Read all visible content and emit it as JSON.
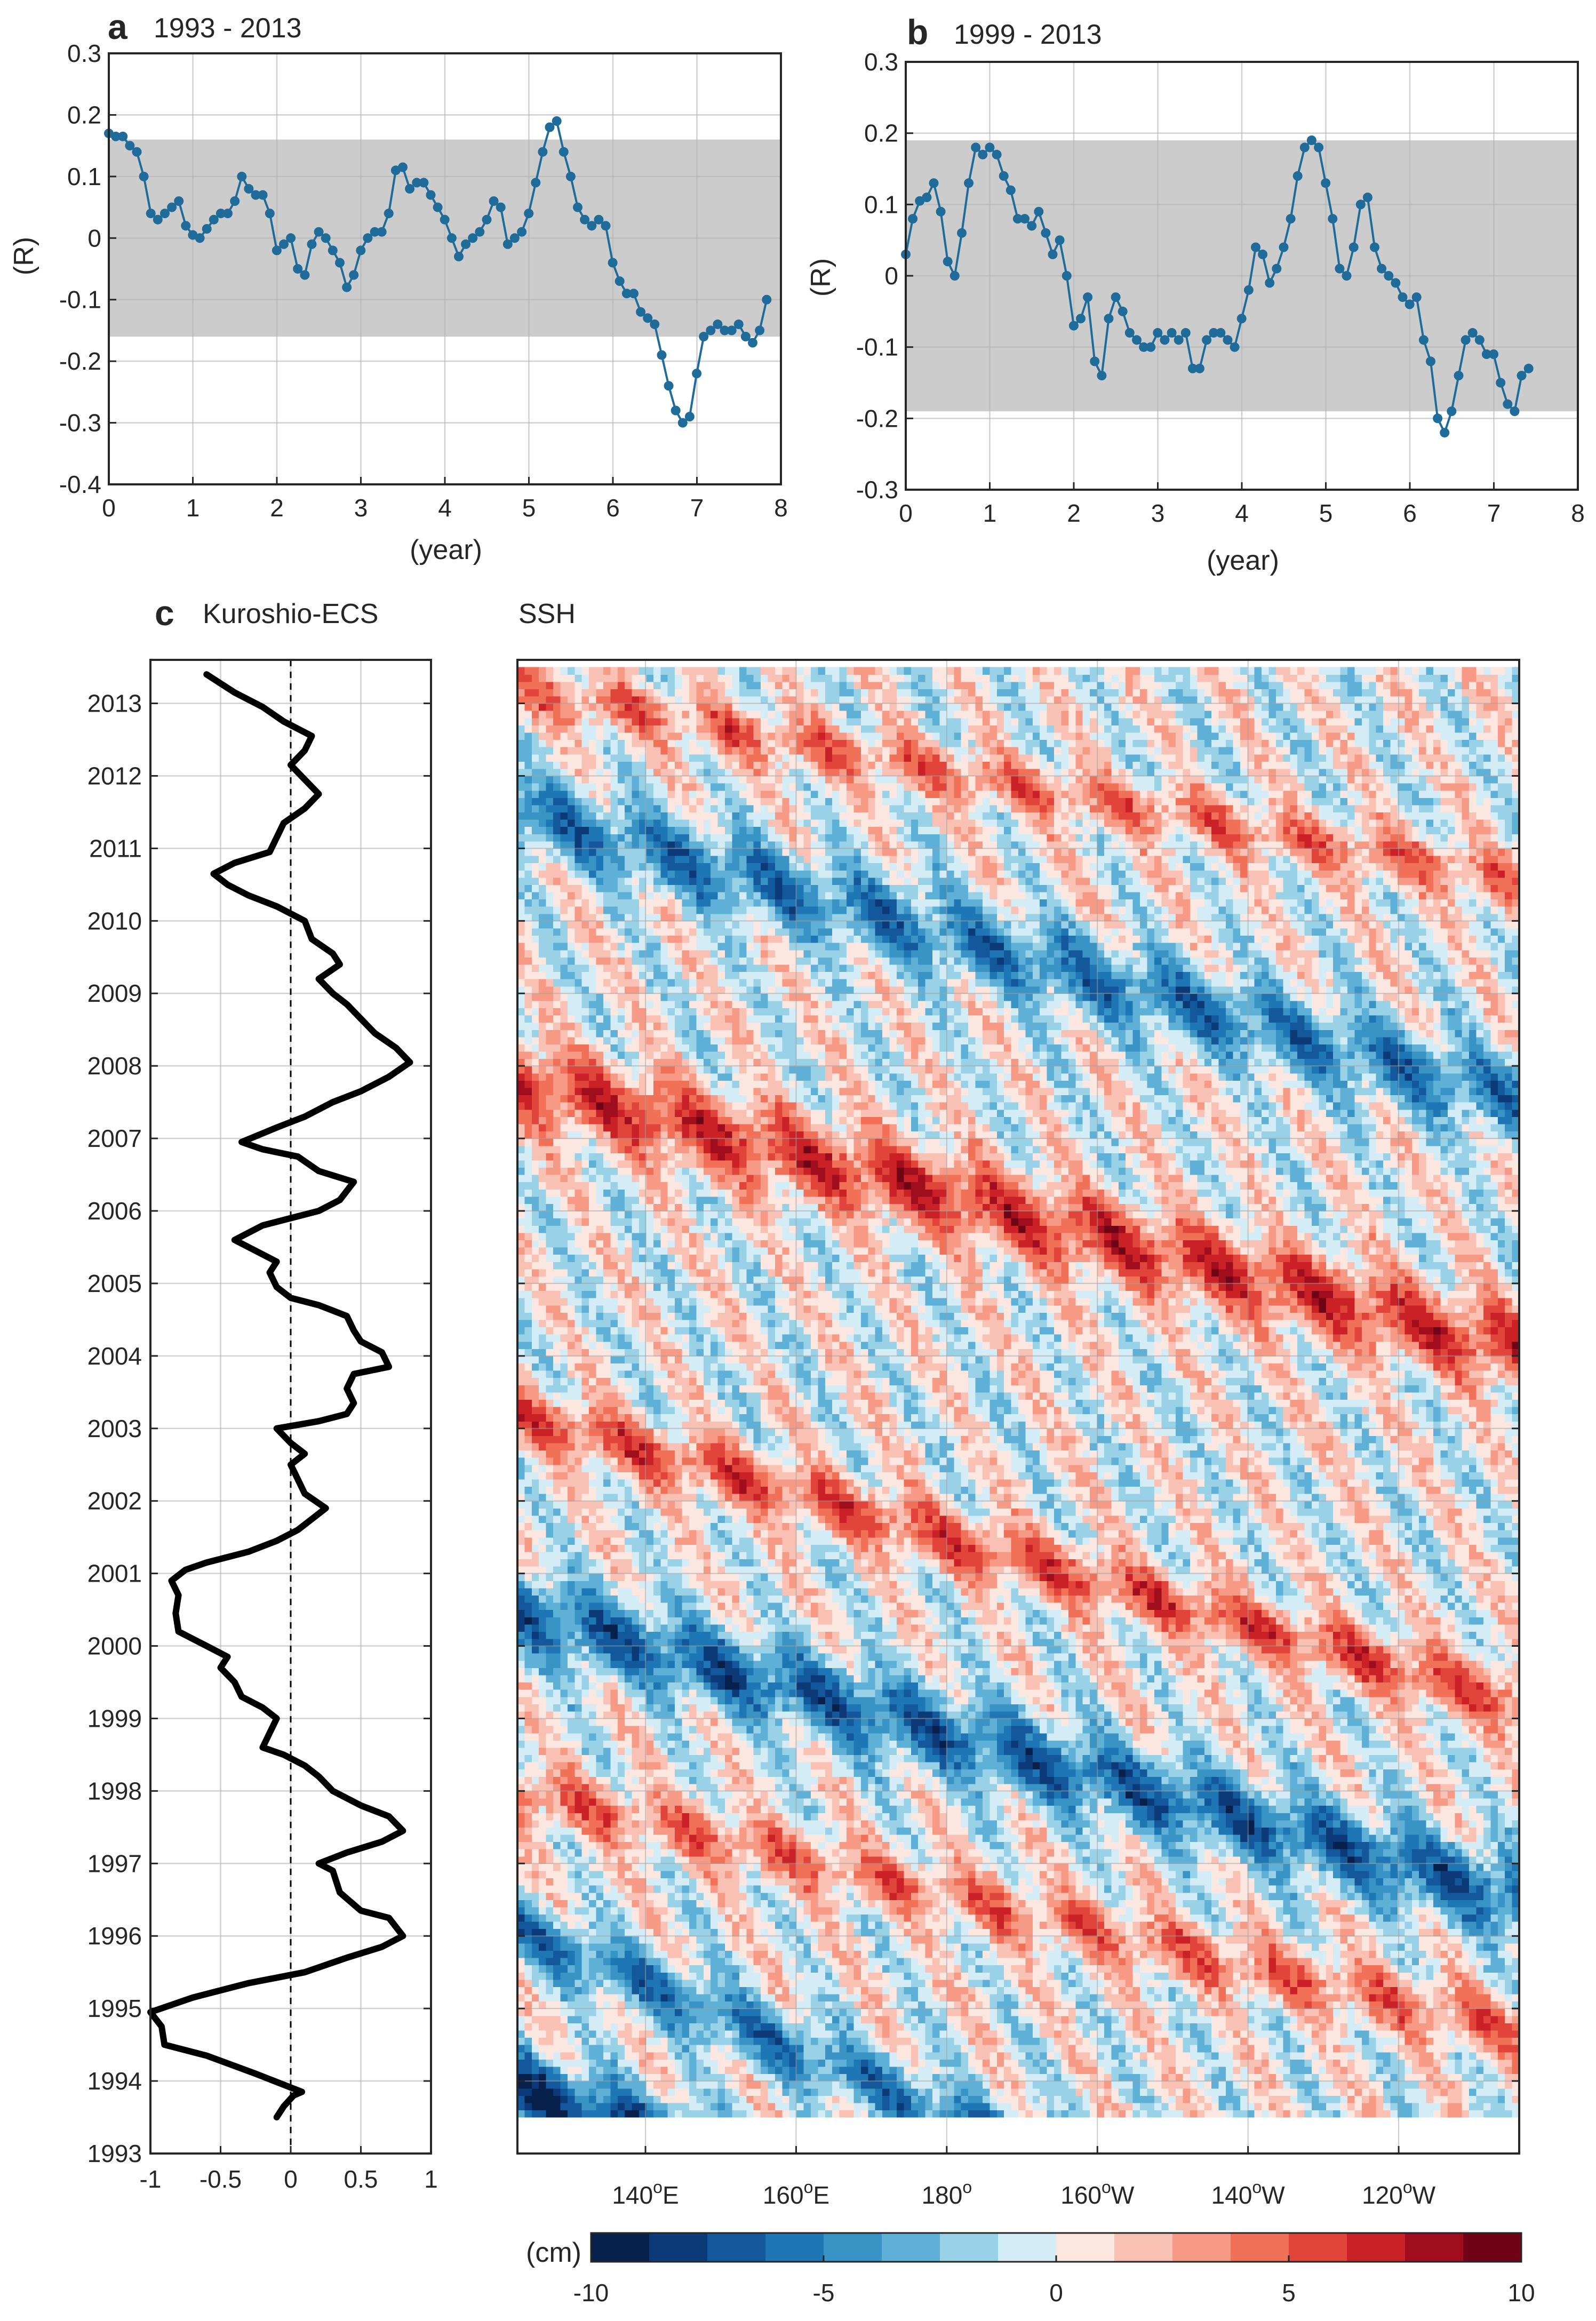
{
  "chart_data": [
    {
      "id": "a",
      "type": "line",
      "panel_letter": "a",
      "title": "1993 - 2013",
      "xlabel": "(year)",
      "ylabel": "(R)",
      "xlim": [
        0,
        8
      ],
      "ylim": [
        -0.4,
        0.3
      ],
      "xticks": [
        0,
        1,
        2,
        3,
        4,
        5,
        6,
        7,
        8
      ],
      "yticks": [
        -0.4,
        -0.3,
        -0.2,
        -0.1,
        0,
        0.1,
        0.2,
        0.3
      ],
      "xtick_labels": [
        "0",
        "1",
        "2",
        "3",
        "4",
        "5",
        "6",
        "7",
        "8"
      ],
      "ytick_labels": [
        "-0.4",
        "-0.3",
        "-0.2",
        "-0.1",
        "0",
        "0.1",
        "0.2",
        "0.3"
      ],
      "grid": true,
      "band": [
        -0.16,
        0.16
      ],
      "line_color": "#1f6b9a",
      "band_color": "#cccccc",
      "x_step": 0.0833,
      "values": [
        0.17,
        0.165,
        0.165,
        0.15,
        0.14,
        0.1,
        0.04,
        0.03,
        0.04,
        0.05,
        0.06,
        0.02,
        0.005,
        0.0,
        0.015,
        0.03,
        0.04,
        0.04,
        0.06,
        0.1,
        0.08,
        0.07,
        0.07,
        0.04,
        -0.02,
        -0.01,
        0.0,
        -0.05,
        -0.06,
        -0.01,
        0.01,
        0.0,
        -0.02,
        -0.04,
        -0.08,
        -0.06,
        -0.02,
        0.0,
        0.01,
        0.01,
        0.04,
        0.11,
        0.115,
        0.08,
        0.09,
        0.09,
        0.07,
        0.05,
        0.03,
        0.0,
        -0.03,
        -0.01,
        0.0,
        0.01,
        0.03,
        0.06,
        0.05,
        -0.01,
        0.0,
        0.01,
        0.04,
        0.09,
        0.14,
        0.18,
        0.19,
        0.14,
        0.1,
        0.05,
        0.03,
        0.02,
        0.03,
        0.02,
        -0.04,
        -0.07,
        -0.09,
        -0.09,
        -0.12,
        -0.13,
        -0.14,
        -0.19,
        -0.24,
        -0.28,
        -0.3,
        -0.29,
        -0.22,
        -0.16,
        -0.15,
        -0.14,
        -0.15,
        -0.15,
        -0.14,
        -0.16,
        -0.17,
        -0.15,
        -0.1
      ]
    },
    {
      "id": "b",
      "type": "line",
      "panel_letter": "b",
      "title": "1999 - 2013",
      "xlabel": "(year)",
      "ylabel": "(R)",
      "xlim": [
        0,
        8
      ],
      "ylim": [
        -0.3,
        0.3
      ],
      "xticks": [
        0,
        1,
        2,
        3,
        4,
        5,
        6,
        7,
        8
      ],
      "yticks": [
        -0.3,
        -0.2,
        -0.1,
        0,
        0.1,
        0.2,
        0.3
      ],
      "xtick_labels": [
        "0",
        "1",
        "2",
        "3",
        "4",
        "5",
        "6",
        "7",
        "8"
      ],
      "ytick_labels": [
        "-0.3",
        "-0.2",
        "-0.1",
        "0",
        "0.1",
        "0.2",
        "0.3"
      ],
      "grid": true,
      "band": [
        -0.19,
        0.19
      ],
      "line_color": "#1f6b9a",
      "band_color": "#cccccc",
      "x_step": 0.0833,
      "values": [
        0.03,
        0.08,
        0.105,
        0.11,
        0.13,
        0.09,
        0.02,
        0.0,
        0.06,
        0.13,
        0.18,
        0.17,
        0.18,
        0.17,
        0.14,
        0.12,
        0.08,
        0.08,
        0.07,
        0.09,
        0.06,
        0.03,
        0.05,
        0.0,
        -0.07,
        -0.06,
        -0.03,
        -0.12,
        -0.14,
        -0.06,
        -0.03,
        -0.05,
        -0.08,
        -0.09,
        -0.1,
        -0.1,
        -0.08,
        -0.09,
        -0.08,
        -0.09,
        -0.08,
        -0.13,
        -0.13,
        -0.09,
        -0.08,
        -0.08,
        -0.09,
        -0.1,
        -0.06,
        -0.02,
        0.04,
        0.03,
        -0.01,
        0.01,
        0.04,
        0.08,
        0.14,
        0.18,
        0.19,
        0.18,
        0.13,
        0.08,
        0.01,
        0.0,
        0.04,
        0.1,
        0.11,
        0.04,
        0.01,
        0.0,
        -0.01,
        -0.03,
        -0.04,
        -0.03,
        -0.09,
        -0.12,
        -0.2,
        -0.22,
        -0.19,
        -0.14,
        -0.09,
        -0.08,
        -0.09,
        -0.11,
        -0.11,
        -0.15,
        -0.18,
        -0.19,
        -0.14,
        -0.13
      ]
    },
    {
      "id": "c",
      "type": "line",
      "panel_letter": "c",
      "title": "Kuroshio-ECS",
      "orientation": "vertical",
      "xlim": [
        -1,
        1
      ],
      "ylim": [
        1993,
        2013.6
      ],
      "xticks": [
        -1,
        -0.5,
        0,
        0.5,
        1
      ],
      "xtick_labels": [
        "-1",
        "-0.5",
        "0",
        "0.5",
        "1"
      ],
      "yticks": [
        1993,
        1994,
        1995,
        1996,
        1997,
        1998,
        1999,
        2000,
        2001,
        2002,
        2003,
        2004,
        2005,
        2006,
        2007,
        2008,
        2009,
        2010,
        2011,
        2012,
        2013
      ],
      "ytick_labels": [
        "1993",
        "1994",
        "1995",
        "1996",
        "1997",
        "1998",
        "1999",
        "2000",
        "2001",
        "2002",
        "2003",
        "2004",
        "2005",
        "2006",
        "2007",
        "2008",
        "2009",
        "2010",
        "2011",
        "2012",
        "2013"
      ],
      "grid": true,
      "zero_line": "dashed",
      "line_color": "#000000",
      "points": [
        [
          -0.1,
          1993.5
        ],
        [
          -0.05,
          1993.65
        ],
        [
          0.02,
          1993.8
        ],
        [
          0.08,
          1993.85
        ],
        [
          -0.25,
          1994.1
        ],
        [
          -0.6,
          1994.35
        ],
        [
          -0.9,
          1994.5
        ],
        [
          -0.92,
          1994.75
        ],
        [
          -1.0,
          1994.95
        ],
        [
          -0.7,
          1995.15
        ],
        [
          -0.3,
          1995.35
        ],
        [
          0.1,
          1995.5
        ],
        [
          0.4,
          1995.7
        ],
        [
          0.65,
          1995.85
        ],
        [
          0.8,
          1996.0
        ],
        [
          0.7,
          1996.25
        ],
        [
          0.5,
          1996.35
        ],
        [
          0.35,
          1996.6
        ],
        [
          0.3,
          1996.9
        ],
        [
          0.2,
          1997.0
        ],
        [
          0.4,
          1997.15
        ],
        [
          0.65,
          1997.3
        ],
        [
          0.8,
          1997.45
        ],
        [
          0.7,
          1997.65
        ],
        [
          0.5,
          1997.8
        ],
        [
          0.3,
          1998.0
        ],
        [
          0.2,
          1998.2
        ],
        [
          0.1,
          1998.35
        ],
        [
          -0.05,
          1998.5
        ],
        [
          -0.2,
          1998.6
        ],
        [
          -0.15,
          1998.8
        ],
        [
          -0.1,
          1999.0
        ],
        [
          -0.2,
          1999.15
        ],
        [
          -0.35,
          1999.3
        ],
        [
          -0.4,
          1999.5
        ],
        [
          -0.5,
          1999.7
        ],
        [
          -0.45,
          1999.85
        ],
        [
          -0.6,
          2000.0
        ],
        [
          -0.8,
          2000.2
        ],
        [
          -0.82,
          2000.45
        ],
        [
          -0.8,
          2000.7
        ],
        [
          -0.85,
          2000.9
        ],
        [
          -0.75,
          2001.05
        ],
        [
          -0.6,
          2001.15
        ],
        [
          -0.3,
          2001.3
        ],
        [
          -0.1,
          2001.45
        ],
        [
          0.05,
          2001.6
        ],
        [
          0.15,
          2001.75
        ],
        [
          0.25,
          2001.9
        ],
        [
          0.1,
          2002.1
        ],
        [
          0.05,
          2002.3
        ],
        [
          0.0,
          2002.5
        ],
        [
          0.1,
          2002.65
        ],
        [
          0.0,
          2002.8
        ],
        [
          -0.1,
          2003.0
        ],
        [
          0.2,
          2003.1
        ],
        [
          0.4,
          2003.2
        ],
        [
          0.45,
          2003.35
        ],
        [
          0.4,
          2003.55
        ],
        [
          0.45,
          2003.75
        ],
        [
          0.7,
          2003.85
        ],
        [
          0.65,
          2004.05
        ],
        [
          0.5,
          2004.2
        ],
        [
          0.45,
          2004.35
        ],
        [
          0.4,
          2004.55
        ],
        [
          0.2,
          2004.7
        ],
        [
          0.0,
          2004.8
        ],
        [
          -0.1,
          2004.95
        ],
        [
          -0.15,
          2005.15
        ],
        [
          -0.1,
          2005.3
        ],
        [
          -0.25,
          2005.45
        ],
        [
          -0.4,
          2005.6
        ],
        [
          -0.2,
          2005.8
        ],
        [
          0.0,
          2005.9
        ],
        [
          0.2,
          2006.0
        ],
        [
          0.35,
          2006.15
        ],
        [
          0.45,
          2006.4
        ],
        [
          0.2,
          2006.55
        ],
        [
          0.05,
          2006.75
        ],
        [
          -0.2,
          2006.85
        ],
        [
          -0.35,
          2006.95
        ],
        [
          -0.1,
          2007.15
        ],
        [
          0.1,
          2007.3
        ],
        [
          0.3,
          2007.5
        ],
        [
          0.5,
          2007.65
        ],
        [
          0.7,
          2007.85
        ],
        [
          0.85,
          2008.05
        ],
        [
          0.75,
          2008.25
        ],
        [
          0.6,
          2008.45
        ],
        [
          0.5,
          2008.65
        ],
        [
          0.4,
          2008.85
        ],
        [
          0.3,
          2009.0
        ],
        [
          0.2,
          2009.2
        ],
        [
          0.35,
          2009.4
        ],
        [
          0.3,
          2009.55
        ],
        [
          0.15,
          2009.75
        ],
        [
          0.1,
          2010.0
        ],
        [
          -0.1,
          2010.2
        ],
        [
          -0.3,
          2010.35
        ],
        [
          -0.45,
          2010.5
        ],
        [
          -0.55,
          2010.65
        ],
        [
          -0.4,
          2010.8
        ],
        [
          -0.15,
          2010.95
        ],
        [
          -0.1,
          2011.15
        ],
        [
          -0.05,
          2011.35
        ],
        [
          0.1,
          2011.55
        ],
        [
          0.2,
          2011.75
        ],
        [
          0.1,
          2011.95
        ],
        [
          0.0,
          2012.15
        ],
        [
          0.1,
          2012.35
        ],
        [
          0.15,
          2012.55
        ],
        [
          -0.05,
          2012.75
        ],
        [
          -0.2,
          2012.95
        ],
        [
          -0.4,
          2013.15
        ],
        [
          -0.6,
          2013.4
        ]
      ]
    },
    {
      "id": "ssh",
      "type": "heatmap",
      "title": "SSH",
      "x_ticks": [
        140,
        160,
        180,
        200,
        220,
        240
      ],
      "xtick_labels": [
        {
          "num": "140",
          "deg": "o",
          "dir": "E"
        },
        {
          "num": "160",
          "deg": "o",
          "dir": "E"
        },
        {
          "num": "180",
          "deg": "o",
          "dir": ""
        },
        {
          "num": "160",
          "deg": "o",
          "dir": "W"
        },
        {
          "num": "140",
          "deg": "o",
          "dir": "W"
        },
        {
          "num": "120",
          "deg": "o",
          "dir": "W"
        }
      ],
      "xlim": [
        123,
        256
      ],
      "ylim": [
        1993,
        2013.6
      ],
      "yticks": [
        1993,
        1994,
        1995,
        1996,
        1997,
        1998,
        1999,
        2000,
        2001,
        2002,
        2003,
        2004,
        2005,
        2006,
        2007,
        2008,
        2009,
        2010,
        2011,
        2012,
        2013
      ],
      "data_ylim": [
        1993.5,
        2013.5
      ],
      "data_xlim": [
        123,
        256
      ],
      "colorbar": {
        "label": "(cm)",
        "vmin": -10,
        "vmax": 10,
        "ticks": [
          -10,
          -5,
          0,
          5,
          10
        ],
        "tick_labels": [
          "-10",
          "-5",
          "0",
          "5",
          "10"
        ],
        "colors": [
          "#08214c",
          "#0c3a78",
          "#12589b",
          "#1f76b4",
          "#3993c5",
          "#5eb0d6",
          "#99d1e6",
          "#d4ecf5",
          "#fbe6e0",
          "#f9c1b3",
          "#f69a85",
          "#f07058",
          "#e0443a",
          "#c92126",
          "#a00e1d",
          "#6e0416"
        ]
      },
      "bands": [
        {
          "a": -8,
          "t0": 1993.9,
          "slope": 0.04,
          "w": 0.55
        },
        {
          "a": -5,
          "t0": 1996.1,
          "slope": 0.045,
          "w": 0.45
        },
        {
          "a": 4,
          "t0": 1998.0,
          "slope": 0.025,
          "w": 0.4
        },
        {
          "a": -6,
          "t0": 2000.5,
          "slope": 0.03,
          "w": 0.55
        },
        {
          "a": 5,
          "t0": 2003.2,
          "slope": 0.03,
          "w": 0.4
        },
        {
          "a": 6,
          "t0": 2007.8,
          "slope": 0.028,
          "w": 0.55
        },
        {
          "a": -5,
          "t0": 2011.5,
          "slope": 0.03,
          "w": 0.55
        },
        {
          "a": 4,
          "t0": 2013.2,
          "slope": 0.02,
          "w": 0.35
        }
      ]
    }
  ]
}
